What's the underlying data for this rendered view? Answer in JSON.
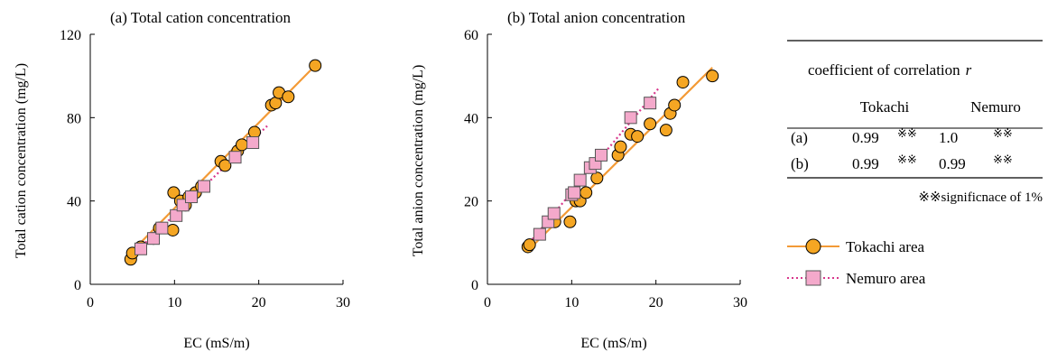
{
  "colors": {
    "tokachi": "#F5A623",
    "tokachi_line": "#F39A36",
    "nemuro_fill": "#F4A9CB",
    "nemuro_line": "#D8368B",
    "axis": "#000000"
  },
  "chart_data": [
    {
      "type": "scatter",
      "title": "(a) Total cation concentration",
      "xlabel": "EC (mS/m)",
      "ylabel": "Total cation concentration (mg/L)",
      "xlim": [
        0,
        30
      ],
      "ylim": [
        0,
        120
      ],
      "xticks": [
        "0",
        "10",
        "20",
        "30"
      ],
      "yticks": [
        "0",
        "40",
        "80",
        "120"
      ],
      "series": [
        {
          "name": "Tokachi area",
          "marker": "circle",
          "points": [
            [
              4.8,
              12
            ],
            [
              5.0,
              15
            ],
            [
              6.0,
              18
            ],
            [
              7.5,
              22
            ],
            [
              8.2,
              27
            ],
            [
              9.8,
              26
            ],
            [
              9.9,
              44
            ],
            [
              10.7,
              40
            ],
            [
              11.3,
              38
            ],
            [
              11.7,
              42
            ],
            [
              12.5,
              44
            ],
            [
              13.2,
              47
            ],
            [
              15.5,
              59
            ],
            [
              16.0,
              57
            ],
            [
              17.5,
              64
            ],
            [
              18.0,
              67
            ],
            [
              19.5,
              73
            ],
            [
              21.5,
              86
            ],
            [
              22.0,
              87
            ],
            [
              22.4,
              92
            ],
            [
              23.5,
              90
            ],
            [
              26.7,
              105
            ]
          ],
          "fit": [
            [
              5.0,
              16
            ],
            [
              26.7,
              105
            ]
          ]
        },
        {
          "name": "Nemuro area",
          "marker": "square",
          "points": [
            [
              6.0,
              17
            ],
            [
              7.5,
              22
            ],
            [
              8.5,
              27
            ],
            [
              10.2,
              33
            ],
            [
              11.0,
              38
            ],
            [
              12.0,
              42
            ],
            [
              13.5,
              47
            ],
            [
              17.2,
              61
            ],
            [
              19.3,
              68
            ]
          ],
          "fit": [
            [
              5.0,
              14
            ],
            [
              21.0,
              76
            ]
          ]
        }
      ]
    },
    {
      "type": "scatter",
      "title": "(b) Total anion concentration",
      "xlabel": "EC (mS/m)",
      "ylabel": "Total anion concentration (mg/L)",
      "xlim": [
        0,
        30
      ],
      "ylim": [
        0,
        60
      ],
      "xticks": [
        "0",
        "10",
        "20",
        "30"
      ],
      "yticks": [
        "0",
        "20",
        "40",
        "60"
      ],
      "series": [
        {
          "name": "Tokachi area",
          "marker": "circle",
          "points": [
            [
              4.8,
              9
            ],
            [
              5.0,
              9.5
            ],
            [
              8.0,
              15
            ],
            [
              9.8,
              15
            ],
            [
              10.5,
              20
            ],
            [
              11.0,
              20
            ],
            [
              11.7,
              22
            ],
            [
              13.0,
              25.5
            ],
            [
              15.5,
              31
            ],
            [
              15.8,
              33
            ],
            [
              17.0,
              36
            ],
            [
              17.8,
              35.5
            ],
            [
              19.3,
              38.5
            ],
            [
              21.2,
              37
            ],
            [
              21.7,
              41
            ],
            [
              22.2,
              43
            ],
            [
              23.2,
              48.5
            ],
            [
              26.7,
              50
            ]
          ],
          "fit": [
            [
              5.0,
              8.5
            ],
            [
              26.7,
              52
            ]
          ]
        },
        {
          "name": "Nemuro area",
          "marker": "square",
          "points": [
            [
              6.2,
              12
            ],
            [
              7.2,
              15
            ],
            [
              7.9,
              17
            ],
            [
              10.0,
              21.5
            ],
            [
              10.3,
              22
            ],
            [
              11.0,
              25
            ],
            [
              12.2,
              28
            ],
            [
              12.8,
              29
            ],
            [
              13.5,
              31
            ],
            [
              17.0,
              40
            ],
            [
              19.3,
              43.5
            ]
          ],
          "fit": [
            [
              5.0,
              10
            ],
            [
              20.3,
              47
            ]
          ]
        }
      ]
    }
  ],
  "table": {
    "header": "coefficient of correlation",
    "header_var": "r",
    "col1": "Tokachi",
    "col2": "Nemuro",
    "rows": [
      {
        "label": "(a)",
        "tokachi": "0.99",
        "tokachi_sig": "※※",
        "nemuro": "1.0",
        "nemuro_sig": "※※"
      },
      {
        "label": "(b)",
        "tokachi": "0.99",
        "tokachi_sig": "※※",
        "nemuro": "0.99",
        "nemuro_sig": "※※"
      }
    ],
    "note": "※※significnace  of 1%"
  },
  "legend": {
    "tokachi": "Tokachi area",
    "nemuro": "Nemuro area"
  }
}
